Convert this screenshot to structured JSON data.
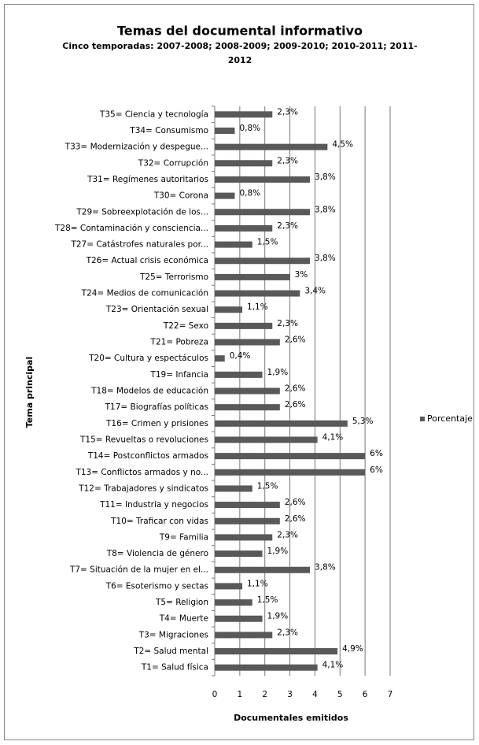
{
  "chart_data": {
    "type": "barh",
    "title": "Temas del documental informativo",
    "subtitle": [
      "Cinco temporadas: 2007-2008; 2008-2009; 2009-2010; 2010-2011; 2011-",
      "2012"
    ],
    "xlabel": "Documentales emitidos",
    "ylabel": "Tema principal",
    "categories": [
      "T35= Ciencia y tecnología",
      "T34= Consumismo",
      "T33= Modernización y despegue...",
      "T32= Corrupción",
      "T31= Regímenes autoritarios",
      "T30= Corona",
      "T29= Sobreexplotación de los...",
      "T28= Contaminación y consciencia...",
      "T27= Catástrofes naturales por...",
      "T26= Actual crisis económica",
      "T25= Terrorismo",
      "T24= Medios de comunicación",
      "T23= Orientación sexual",
      "T22= Sexo",
      "T21= Pobreza",
      "T20= Cultura y espectáculos",
      "T19= Infancia",
      "T18= Modelos de educación",
      "T17= Biografías políticas",
      "T16= Crimen y prisiones",
      "T15= Revueltas o revoluciones",
      "T14= Postconflictos armados",
      "T13= Conflictos armados y no...",
      "T12= Trabajadores y sindicatos",
      "T11= Industria y negocios",
      "T10= Traficar con vidas",
      "T9= Familia",
      "T8= Violencia de género",
      "T7= Situación de la mujer en el...",
      "T6= Esoterismo y sectas",
      "T5= Religion",
      "T4= Muerte",
      "T3= Migraciones",
      "T2= Salud mental",
      "T1= Salud física"
    ],
    "series": [
      {
        "name": "Porcentaje",
        "color": "#595959",
        "values": [
          2.3,
          0.8,
          4.5,
          2.3,
          3.8,
          0.8,
          3.8,
          2.3,
          1.5,
          3.8,
          3,
          3.4,
          1.1,
          2.3,
          2.6,
          0.4,
          1.9,
          2.6,
          2.6,
          5.3,
          4.1,
          6,
          6,
          1.5,
          2.6,
          2.6,
          2.3,
          1.9,
          3.8,
          1.1,
          1.5,
          1.9,
          2.3,
          4.9,
          4.1
        ],
        "value_labels": [
          "2,3%",
          "0,8%",
          "4,5%",
          "2,3%",
          "3,8%",
          "0,8%",
          "3,8%",
          "2,3%",
          "1,5%",
          "3,8%",
          "3%",
          "3,4%",
          "1,1%",
          "2,3%",
          "2,6%",
          "0,4%",
          "1,9%",
          "2,6%",
          "2,6%",
          "5,3%",
          "4,1%",
          "6%",
          "6%",
          "1,5%",
          "2,6%",
          "2,6%",
          "2,3%",
          "1,9%",
          "3,8%",
          "1,1%",
          "1,5%",
          "1,9%",
          "2,3%",
          "4,9%",
          "4,1%"
        ]
      }
    ],
    "xlim": [
      0,
      7
    ],
    "xticks": [
      0,
      1,
      2,
      3,
      4,
      5,
      6,
      7
    ],
    "grid": true,
    "legend": "right"
  }
}
